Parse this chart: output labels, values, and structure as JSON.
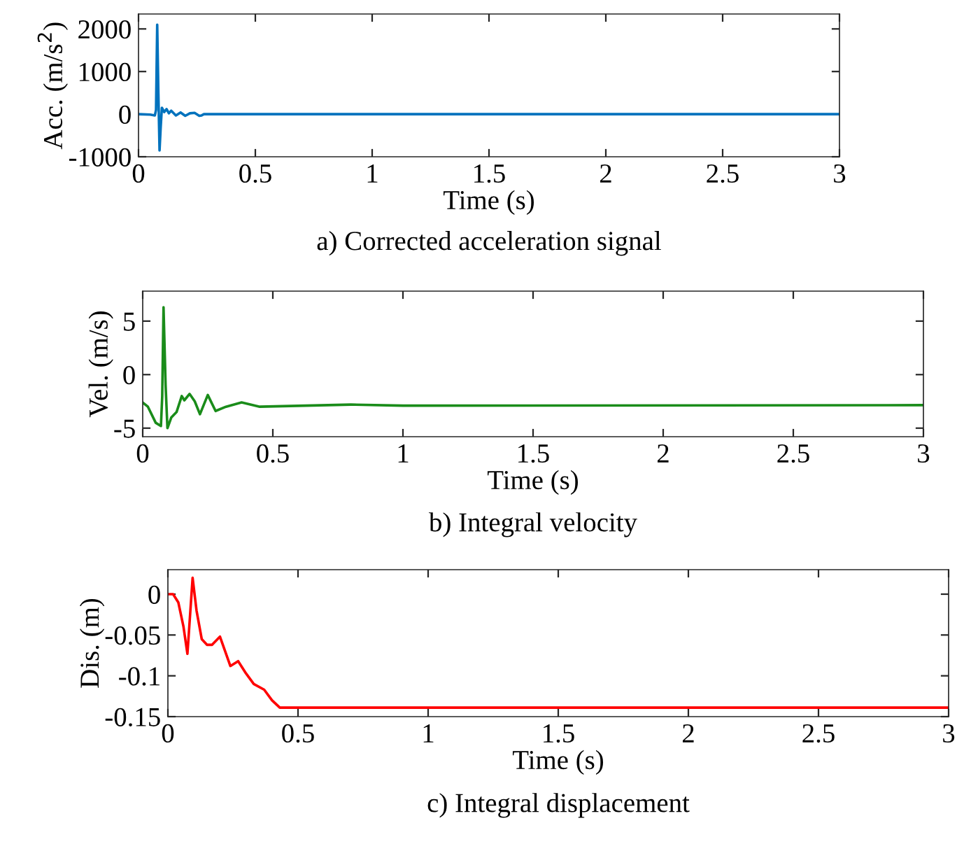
{
  "chart_data": [
    {
      "type": "line",
      "title": "a) Corrected acceleration signal",
      "xlabel": "Time (s)",
      "ylabel": "Acc. (m/s$^{2}$)",
      "xlim": [
        0,
        3
      ],
      "ylim": [
        -1000,
        2350
      ],
      "xticks": [
        0,
        0.5,
        1,
        1.5,
        2,
        2.5,
        3
      ],
      "yticks": [
        -1000,
        0,
        1000,
        2000
      ],
      "grid": false,
      "legend": false,
      "series": [
        {
          "color": "#0072bd",
          "x": [
            0,
            0.05,
            0.07,
            0.075,
            0.08,
            0.085,
            0.09,
            0.095,
            0.1,
            0.11,
            0.12,
            0.13,
            0.14,
            0.16,
            0.18,
            0.2,
            0.22,
            0.24,
            0.26,
            0.27,
            0.28,
            3
          ],
          "values": [
            0,
            -10,
            -30,
            100,
            2100,
            500,
            -850,
            -300,
            150,
            50,
            120,
            20,
            80,
            -30,
            40,
            -40,
            20,
            30,
            -40,
            -30,
            0,
            0
          ]
        }
      ]
    },
    {
      "type": "line",
      "title": "b) Integral velocity",
      "xlabel": "Time (s)",
      "ylabel": "Vel. (m/s)",
      "xlim": [
        0,
        3
      ],
      "ylim": [
        -5.8,
        7.8
      ],
      "xticks": [
        0,
        0.5,
        1,
        1.5,
        2,
        2.5,
        3
      ],
      "yticks": [
        -5,
        0,
        5
      ],
      "grid": false,
      "legend": false,
      "series": [
        {
          "color": "#1a8c1a",
          "x": [
            0,
            0.02,
            0.05,
            0.07,
            0.075,
            0.08,
            0.088,
            0.095,
            0.11,
            0.13,
            0.15,
            0.16,
            0.18,
            0.2,
            0.22,
            0.25,
            0.28,
            0.32,
            0.38,
            0.45,
            0.8,
            1,
            3
          ],
          "values": [
            -2.6,
            -3.0,
            -4.5,
            -4.8,
            -2,
            6.3,
            -1,
            -5.0,
            -4,
            -3.5,
            -2,
            -2.4,
            -1.8,
            -2.5,
            -3.7,
            -1.9,
            -3.4,
            -3.0,
            -2.6,
            -3.0,
            -2.8,
            -2.9,
            -2.85
          ]
        }
      ]
    },
    {
      "type": "line",
      "title": "c) Integral displacement",
      "xlabel": "Time (s)",
      "ylabel": "Dis. (m)",
      "xlim": [
        0,
        3
      ],
      "ylim": [
        -0.15,
        0.03
      ],
      "xticks": [
        0,
        0.5,
        1,
        1.5,
        2,
        2.5,
        3
      ],
      "yticks": [
        -0.15,
        -0.1,
        -0.05,
        0
      ],
      "grid": false,
      "legend": false,
      "series": [
        {
          "color": "#ff0000",
          "x": [
            0,
            0.02,
            0.04,
            0.06,
            0.075,
            0.08,
            0.095,
            0.11,
            0.13,
            0.15,
            0.17,
            0.2,
            0.22,
            0.24,
            0.27,
            0.3,
            0.33,
            0.37,
            0.4,
            0.43,
            0.5,
            3
          ],
          "values": [
            0,
            0,
            -0.01,
            -0.04,
            -0.073,
            -0.05,
            0.02,
            -0.02,
            -0.055,
            -0.062,
            -0.062,
            -0.052,
            -0.07,
            -0.088,
            -0.082,
            -0.097,
            -0.11,
            -0.117,
            -0.13,
            -0.139,
            -0.139,
            -0.139
          ]
        }
      ]
    }
  ]
}
